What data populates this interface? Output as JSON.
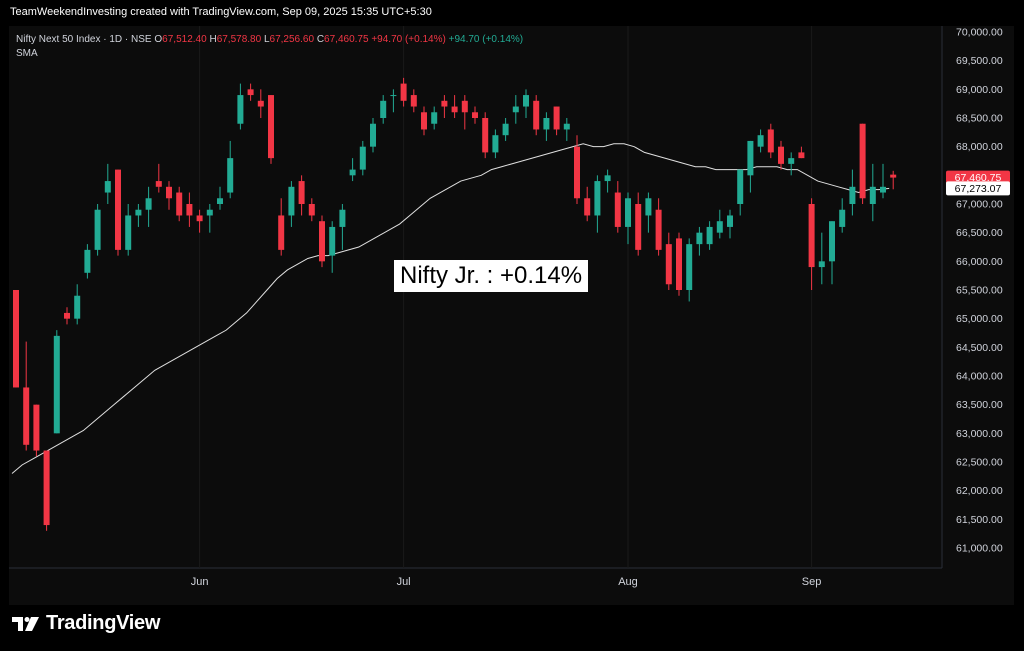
{
  "header": {
    "attribution": "TeamWeekendInvesting created with TradingView.com, Sep 09, 2025 15:35 UTC+5:30"
  },
  "legend": {
    "symbol": "Nifty Next 50 Index · 1D · NSE",
    "open_label": "O",
    "open": "67,512.40",
    "high_label": "H",
    "high": "67,578.80",
    "low_label": "L",
    "low": "67,256.60",
    "close_label": "C",
    "close": "67,460.75",
    "change": "+94.70 (+0.14%)",
    "change2": "+94.70 (+0.14%)",
    "indicator": "SMA"
  },
  "annotation": "Nifty Jr. : +0.14%",
  "brand": "TradingView",
  "colors": {
    "up": "#22ab94",
    "down": "#f23645",
    "sma": "#e0e0e0",
    "background": "#0c0c0c"
  },
  "chart_data": {
    "type": "candlestick",
    "ylim": [
      60700,
      70000
    ],
    "y_ticks": [
      "70,000.00",
      "69,500.00",
      "69,000.00",
      "68,500.00",
      "68,000.00",
      "67,500.00",
      "67,000.00",
      "66,500.00",
      "66,000.00",
      "65,500.00",
      "65,000.00",
      "64,500.00",
      "64,000.00",
      "63,500.00",
      "63,000.00",
      "62,500.00",
      "62,000.00",
      "61,500.00",
      "61,000.00"
    ],
    "x_labels": [
      {
        "index": 18,
        "label": "Jun"
      },
      {
        "index": 38,
        "label": "Jul"
      },
      {
        "index": 60,
        "label": "Aug"
      },
      {
        "index": 78,
        "label": "Sep"
      }
    ],
    "price_labels": [
      {
        "value": 67460.75,
        "text": "67,460.75",
        "kind": "last"
      },
      {
        "value": 67273.07,
        "text": "67,273.07",
        "kind": "sma"
      }
    ],
    "candles": [
      [
        65500,
        65500,
        63800,
        63800
      ],
      [
        63800,
        64600,
        62700,
        62800
      ],
      [
        63500,
        63500,
        62600,
        62700
      ],
      [
        62700,
        62700,
        61300,
        61400
      ],
      [
        63000,
        64800,
        63000,
        64700
      ],
      [
        65100,
        65200,
        64900,
        65000
      ],
      [
        65000,
        65600,
        64900,
        65400
      ],
      [
        65800,
        66300,
        65700,
        66200
      ],
      [
        66200,
        67000,
        66100,
        66900
      ],
      [
        67200,
        67700,
        67000,
        67400
      ],
      [
        67600,
        67600,
        66100,
        66200
      ],
      [
        66200,
        67000,
        66100,
        66800
      ],
      [
        66800,
        67000,
        66600,
        66900
      ],
      [
        66900,
        67300,
        66600,
        67100
      ],
      [
        67400,
        67700,
        67200,
        67300
      ],
      [
        67300,
        67400,
        66900,
        67100
      ],
      [
        67200,
        67300,
        66700,
        66800
      ],
      [
        67000,
        67200,
        66600,
        66800
      ],
      [
        66800,
        66900,
        66500,
        66700
      ],
      [
        66800,
        67000,
        66500,
        66900
      ],
      [
        67000,
        67300,
        66900,
        67100
      ],
      [
        67200,
        68100,
        67100,
        67800
      ],
      [
        68400,
        69100,
        68300,
        68900
      ],
      [
        69000,
        69100,
        68800,
        68900
      ],
      [
        68800,
        69000,
        68500,
        68700
      ],
      [
        68900,
        68900,
        67700,
        67800
      ],
      [
        66800,
        67100,
        66100,
        66200
      ],
      [
        66800,
        67400,
        66600,
        67300
      ],
      [
        67400,
        67500,
        66800,
        67000
      ],
      [
        67000,
        67100,
        66700,
        66800
      ],
      [
        66700,
        66800,
        65900,
        66000
      ],
      [
        66100,
        66700,
        65800,
        66600
      ],
      [
        66600,
        67000,
        66200,
        66900
      ],
      [
        67500,
        67800,
        67400,
        67600
      ],
      [
        67600,
        68100,
        67500,
        68000
      ],
      [
        68000,
        68500,
        67900,
        68400
      ],
      [
        68500,
        68900,
        68400,
        68800
      ],
      [
        68900,
        69000,
        68600,
        68900
      ],
      [
        69100,
        69200,
        68700,
        68800
      ],
      [
        68900,
        69000,
        68600,
        68700
      ],
      [
        68600,
        68700,
        68200,
        68300
      ],
      [
        68400,
        68700,
        68300,
        68600
      ],
      [
        68800,
        68900,
        68500,
        68700
      ],
      [
        68700,
        68900,
        68500,
        68600
      ],
      [
        68800,
        68900,
        68300,
        68600
      ],
      [
        68600,
        68700,
        68400,
        68500
      ],
      [
        68500,
        68600,
        67800,
        67900
      ],
      [
        67900,
        68300,
        67800,
        68200
      ],
      [
        68200,
        68500,
        68100,
        68400
      ],
      [
        68600,
        68900,
        68400,
        68700
      ],
      [
        68700,
        69000,
        68500,
        68900
      ],
      [
        68800,
        68900,
        68200,
        68300
      ],
      [
        68300,
        68600,
        68100,
        68500
      ],
      [
        68700,
        68700,
        68200,
        68300
      ],
      [
        68300,
        68500,
        68100,
        68400
      ],
      [
        68000,
        68200,
        67000,
        67100
      ],
      [
        67100,
        67300,
        66700,
        66800
      ],
      [
        66800,
        67500,
        66500,
        67400
      ],
      [
        67400,
        67600,
        67200,
        67500
      ],
      [
        67200,
        67400,
        66500,
        66600
      ],
      [
        66600,
        67200,
        66300,
        67100
      ],
      [
        67000,
        67200,
        66100,
        66200
      ],
      [
        66800,
        67200,
        66500,
        67100
      ],
      [
        66900,
        67100,
        66100,
        66200
      ],
      [
        66300,
        66500,
        65500,
        65600
      ],
      [
        66400,
        66500,
        65400,
        65500
      ],
      [
        65500,
        66400,
        65300,
        66300
      ],
      [
        66300,
        66600,
        66100,
        66500
      ],
      [
        66300,
        66700,
        66200,
        66600
      ],
      [
        66500,
        66900,
        66400,
        66700
      ],
      [
        66600,
        66900,
        66400,
        66800
      ],
      [
        67000,
        67600,
        66800,
        67600
      ],
      [
        67500,
        68100,
        67200,
        68100
      ],
      [
        68000,
        68300,
        67900,
        68200
      ],
      [
        68300,
        68400,
        67800,
        67900
      ],
      [
        68000,
        68100,
        67600,
        67700
      ],
      [
        67700,
        67900,
        67500,
        67800
      ],
      [
        67900,
        68000,
        67800,
        67800
      ],
      [
        67000,
        67100,
        65500,
        65900
      ],
      [
        65900,
        66500,
        65600,
        66000
      ],
      [
        66000,
        66700,
        65600,
        66700
      ],
      [
        66600,
        67100,
        66500,
        66900
      ],
      [
        67000,
        67600,
        66800,
        67300
      ],
      [
        68400,
        68400,
        67000,
        67100
      ],
      [
        67000,
        67700,
        66700,
        67300
      ],
      [
        67200,
        67700,
        67100,
        67300
      ],
      [
        67512.4,
        67578.8,
        67256.6,
        67460.75
      ]
    ],
    "sma": [
      62300,
      62450,
      62550,
      62650,
      62750,
      62850,
      62950,
      63050,
      63200,
      63350,
      63500,
      63650,
      63800,
      63950,
      64100,
      64200,
      64300,
      64400,
      64500,
      64600,
      64700,
      64800,
      64950,
      65100,
      65300,
      65500,
      65700,
      65850,
      65950,
      66050,
      66100,
      66100,
      66150,
      66200,
      66250,
      66350,
      66450,
      66550,
      66650,
      66800,
      66950,
      67100,
      67200,
      67300,
      67400,
      67450,
      67500,
      67600,
      67650,
      67700,
      67750,
      67800,
      67850,
      67900,
      67950,
      68000,
      68050,
      68000,
      68000,
      68050,
      68050,
      68000,
      67900,
      67850,
      67800,
      67750,
      67700,
      67650,
      67650,
      67600,
      67600,
      67600,
      67600,
      67650,
      67650,
      67650,
      67600,
      67600,
      67500,
      67400,
      67350,
      67300,
      67250,
      67200,
      67250,
      67250,
      67273.07
    ]
  }
}
